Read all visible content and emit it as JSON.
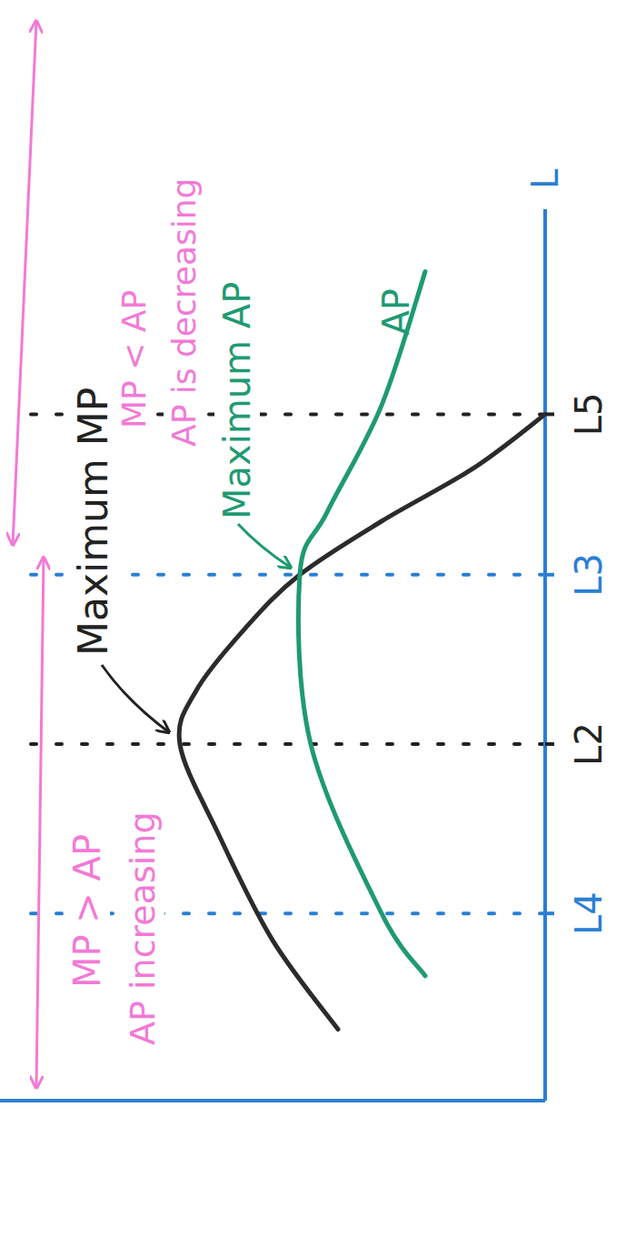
{
  "chart_data": {
    "type": "line",
    "x_label": "L",
    "xlim": [
      0,
      100
    ],
    "ylim": [
      0,
      100
    ],
    "xticks": [
      {
        "value": 21,
        "label": "L4"
      },
      {
        "value": 40,
        "label": "L2"
      },
      {
        "value": 59,
        "label": "L3"
      },
      {
        "value": 77,
        "label": "L5"
      }
    ],
    "grid": true,
    "tick_labels": "x",
    "series": [
      {
        "color": "#2b2b2b",
        "x": [
          8,
          18,
          30,
          40,
          46,
          53,
          59,
          65,
          71,
          77
        ],
        "values": [
          38,
          50,
          60,
          67,
          64,
          55,
          45,
          30,
          13,
          0
        ]
      },
      {
        "name": "AP",
        "color": "#1f9a72",
        "x": [
          14,
          21,
          40,
          59,
          66,
          78,
          93
        ],
        "values": [
          22,
          30,
          43,
          45,
          40,
          30,
          22
        ]
      }
    ],
    "annotations": [
      "MP > AP",
      "AP increasing",
      "Maximum MP",
      "MP < AP",
      "AP is decreasing",
      "Maximum AP"
    ]
  }
}
